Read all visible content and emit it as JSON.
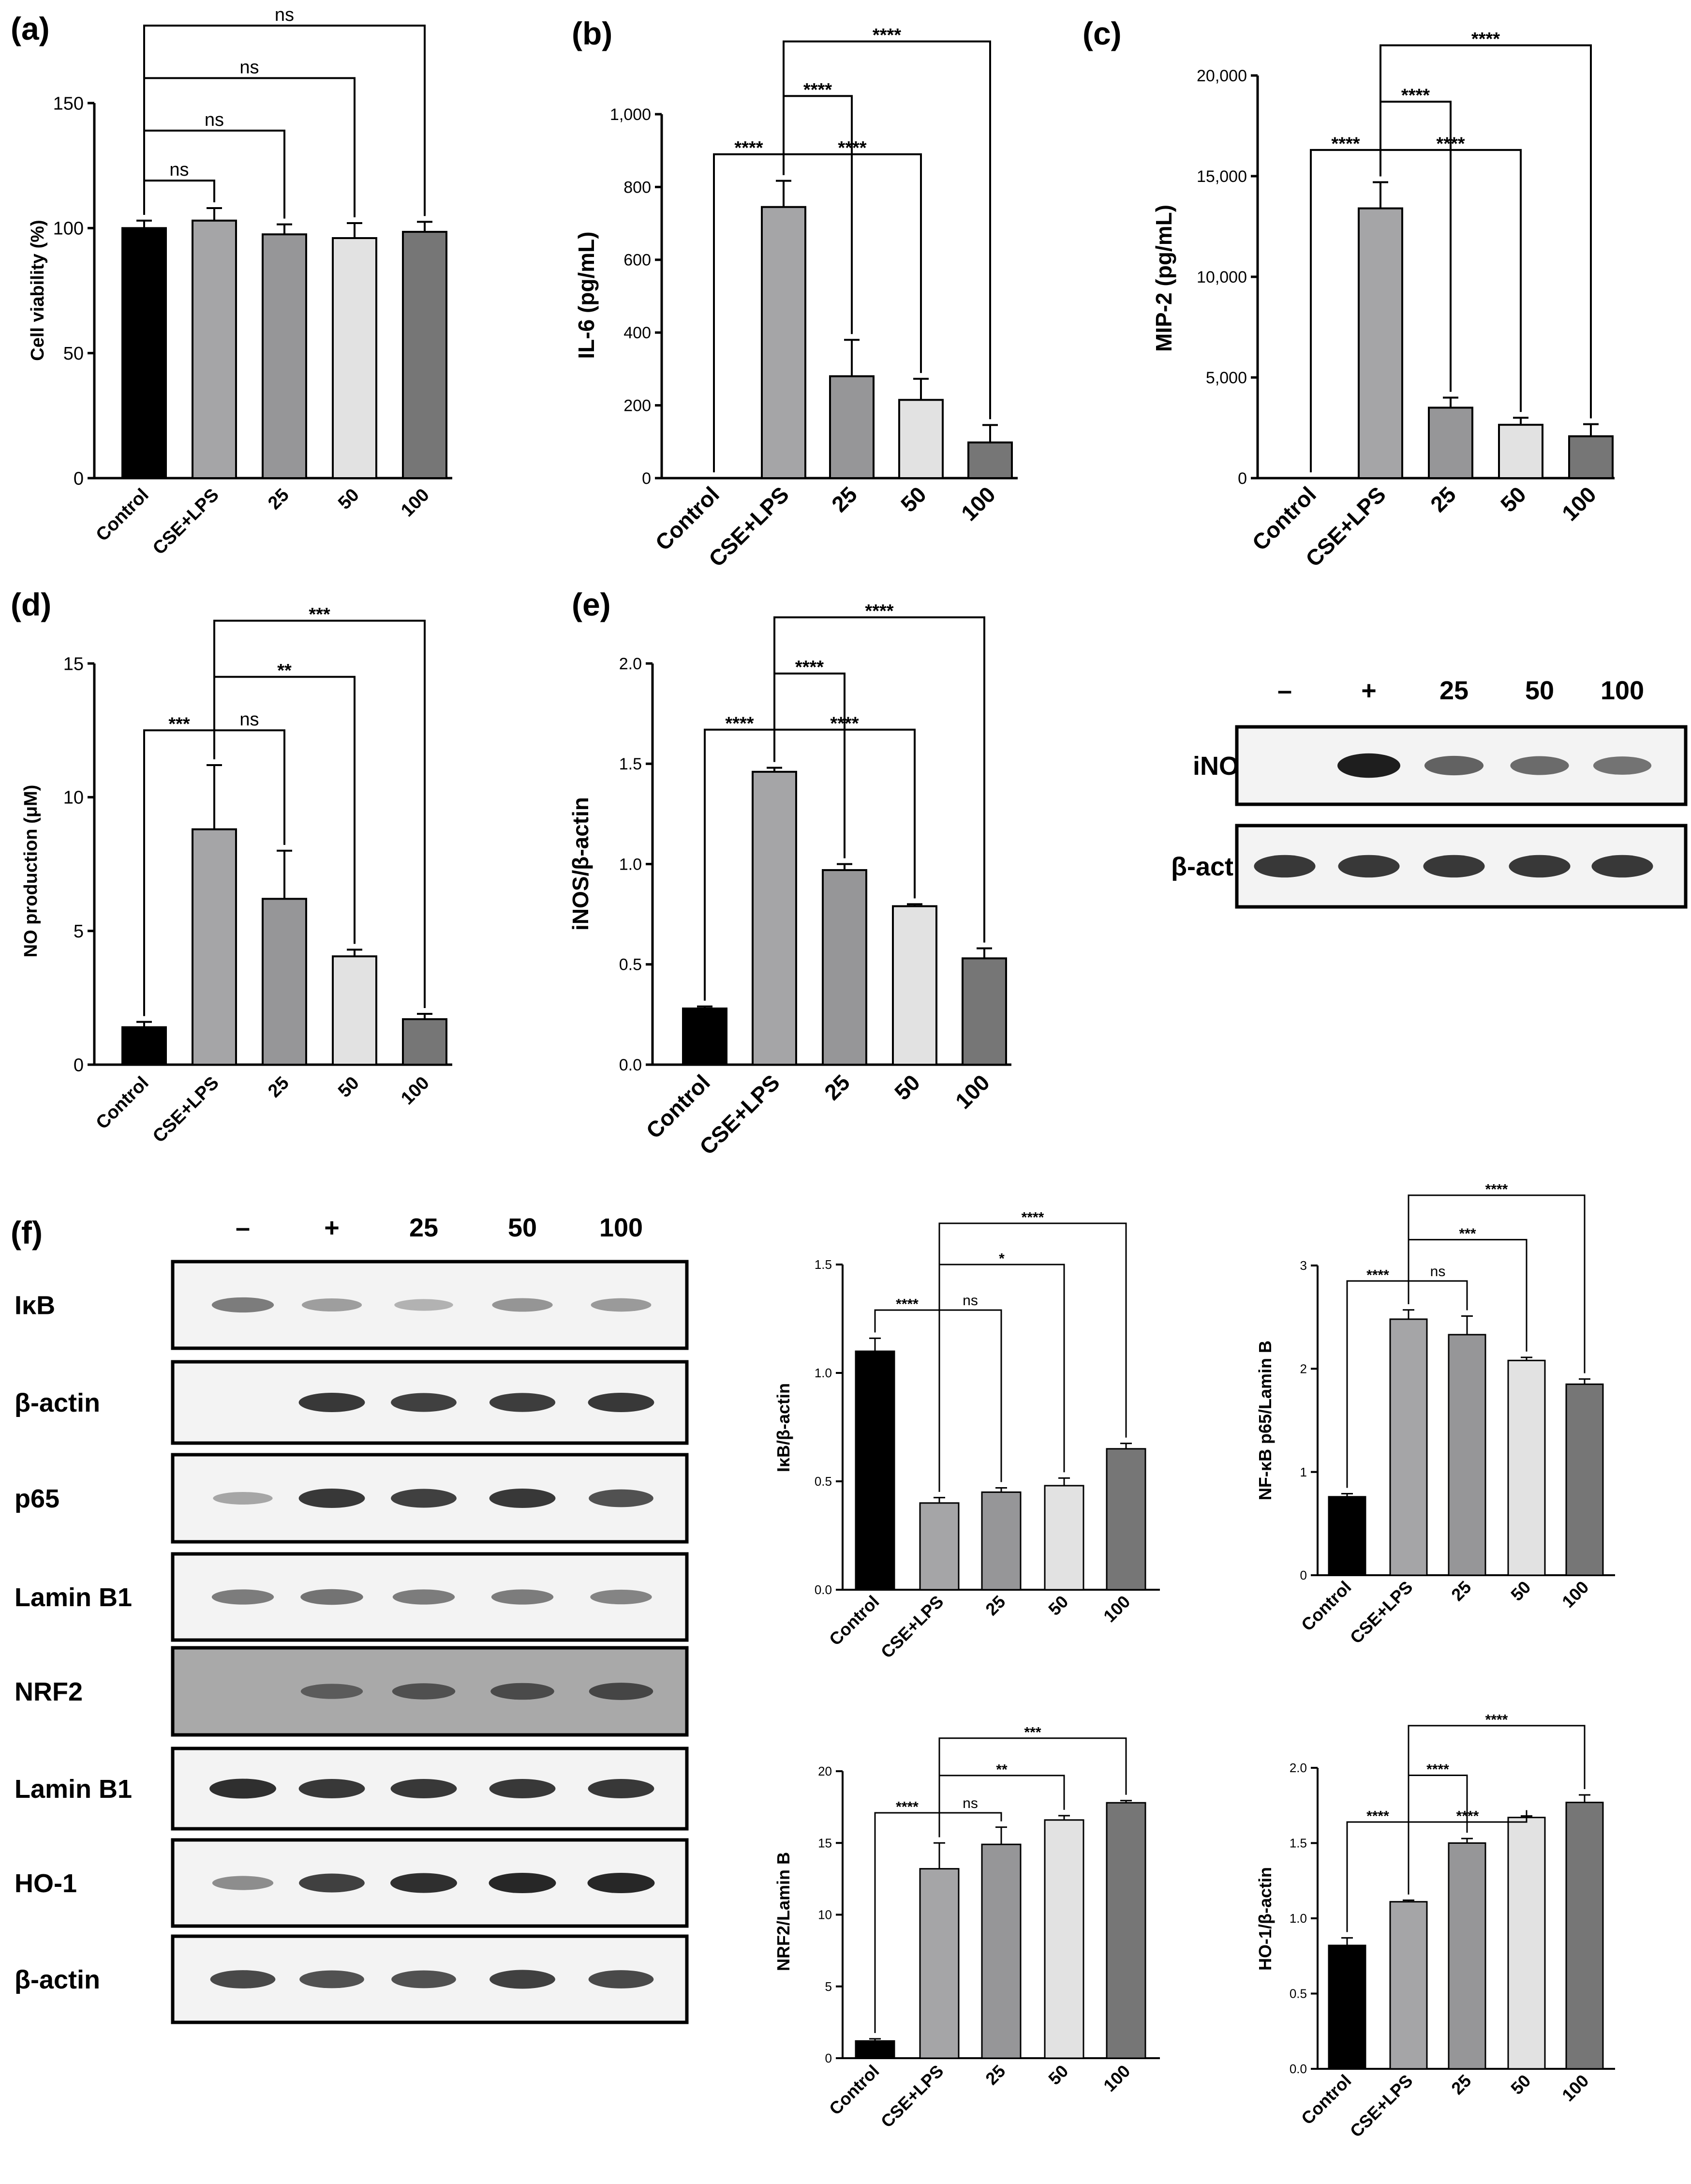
{
  "figure": {
    "colors": {
      "control": "#000000",
      "cse_lps": "#a5a5a7",
      "dose25": "#969698",
      "dose50": "#e2e2e2",
      "dose100": "#767676",
      "blot_background": "#f3f3f3",
      "band": "#1e1e1e",
      "noisy_background": "#a9a9a9"
    },
    "blot_iNOS": {
      "lane_headers": [
        "–",
        "+",
        "25",
        "50",
        "100"
      ],
      "rows": [
        {
          "label": "iNOS",
          "intensities": [
            0.0,
            1.0,
            0.6,
            0.55,
            0.5
          ]
        },
        {
          "label": "β-actin",
          "intensities": [
            0.85,
            0.85,
            0.85,
            0.85,
            0.85
          ]
        }
      ]
    },
    "blot_f": {
      "lane_headers": [
        "–",
        "+",
        "25",
        "50",
        "100"
      ],
      "rows": [
        {
          "label": "IκB",
          "intensities": [
            0.45,
            0.25,
            0.12,
            0.3,
            0.28
          ]
        },
        {
          "label": "β-actin",
          "intensities": [
            0.0,
            0.85,
            0.8,
            0.82,
            0.85
          ]
        },
        {
          "label": "p65",
          "intensities": [
            0.2,
            0.85,
            0.8,
            0.85,
            0.7
          ]
        },
        {
          "label": "Lamin B1",
          "intensities": [
            0.45,
            0.5,
            0.45,
            0.45,
            0.4
          ]
        },
        {
          "label": "NRF2",
          "intensities": [
            0.0,
            0.45,
            0.55,
            0.6,
            0.65
          ]
        },
        {
          "label": "Lamin B1",
          "intensities": [
            0.9,
            0.85,
            0.85,
            0.85,
            0.85
          ]
        },
        {
          "label": "HO-1",
          "intensities": [
            0.35,
            0.8,
            0.9,
            0.95,
            0.95
          ]
        },
        {
          "label": "β-actin",
          "intensities": [
            0.75,
            0.7,
            0.7,
            0.8,
            0.75
          ]
        }
      ]
    }
  },
  "chart_data": [
    {
      "id": "a",
      "panel_label": "(a)",
      "type": "bar",
      "size": "large",
      "ylabel": "Cell viability (%)",
      "ylim": [
        0,
        150
      ],
      "ytick_values": [
        0,
        50,
        100,
        150
      ],
      "ytick_labels": [
        "0",
        "50",
        "100",
        "150"
      ],
      "categories": [
        "Control",
        "CSE+LPS",
        "25",
        "50",
        "100"
      ],
      "values": [
        100,
        103,
        97.5,
        96,
        98.5
      ],
      "errors": [
        3,
        5,
        4,
        6,
        4
      ],
      "brackets": [
        {
          "from": 0,
          "to": 1,
          "label": "ns",
          "y": 119
        },
        {
          "from": 0,
          "to": 2,
          "label": "ns",
          "y": 139
        },
        {
          "from": 0,
          "to": 3,
          "label": "ns",
          "y": 160
        },
        {
          "from": 0,
          "to": 4,
          "label": "ns",
          "y": 181
        }
      ]
    },
    {
      "id": "b",
      "panel_label": "(b)",
      "type": "bar",
      "size": "large",
      "ylabel": "IL-6 (pg/mL)",
      "ylim": [
        0,
        1000
      ],
      "ytick_values": [
        0,
        200,
        400,
        600,
        800,
        1000
      ],
      "ytick_labels": [
        "0",
        "200",
        "400",
        "600",
        "800",
        "1,000"
      ],
      "categories": [
        "Control",
        "CSE+LPS",
        "25",
        "50",
        "100"
      ],
      "values": [
        0,
        745,
        280,
        215,
        98
      ],
      "errors": [
        0,
        72,
        100,
        58,
        48
      ],
      "brackets": [
        {
          "from": 0,
          "to": 1,
          "label": "****",
          "y": 890
        },
        {
          "from": 1,
          "to": 3,
          "label": "****",
          "y": 890
        },
        {
          "from": 1,
          "to": 2,
          "label": "****",
          "y": 1050
        },
        {
          "from": 1,
          "to": 4,
          "label": "****",
          "y": 1200
        }
      ]
    },
    {
      "id": "c",
      "panel_label": "(c)",
      "type": "bar",
      "size": "large",
      "ylabel": "MIP-2 (pg/mL)",
      "ylim": [
        0,
        20000
      ],
      "ytick_values": [
        0,
        5000,
        10000,
        15000,
        20000
      ],
      "ytick_labels": [
        "0",
        "5,000",
        "10,000",
        "15,000",
        "20,000"
      ],
      "categories": [
        "Control",
        "CSE+LPS",
        "25",
        "50",
        "100"
      ],
      "values": [
        0,
        13400,
        3500,
        2650,
        2080
      ],
      "errors": [
        0,
        1300,
        500,
        350,
        600
      ],
      "brackets": [
        {
          "from": 0,
          "to": 1,
          "label": "****",
          "y": 16300
        },
        {
          "from": 1,
          "to": 3,
          "label": "****",
          "y": 16300
        },
        {
          "from": 1,
          "to": 2,
          "label": "****",
          "y": 18700
        },
        {
          "from": 1,
          "to": 4,
          "label": "****",
          "y": 21500
        }
      ]
    },
    {
      "id": "d",
      "panel_label": "(d)",
      "type": "bar",
      "size": "large",
      "ylabel": "NO production (μM)",
      "ylim": [
        0,
        15
      ],
      "ytick_values": [
        0,
        5,
        10,
        15
      ],
      "ytick_labels": [
        "0",
        "5",
        "10",
        "15"
      ],
      "categories": [
        "Control",
        "CSE+LPS",
        "25",
        "50",
        "100"
      ],
      "values": [
        1.4,
        8.8,
        6.2,
        4.05,
        1.7
      ],
      "errors": [
        0.2,
        2.4,
        1.8,
        0.25,
        0.2
      ],
      "brackets": [
        {
          "from": 0,
          "to": 1,
          "label": "***",
          "y": 12.5
        },
        {
          "from": 1,
          "to": 2,
          "label": "ns",
          "y": 12.5
        },
        {
          "from": 1,
          "to": 3,
          "label": "**",
          "y": 14.5
        },
        {
          "from": 1,
          "to": 4,
          "label": "***",
          "y": 16.6
        }
      ]
    },
    {
      "id": "e",
      "panel_label": "(e)",
      "type": "bar",
      "size": "large",
      "ylabel": "iNOS/β-actin",
      "ylim": [
        0,
        2.0
      ],
      "ytick_values": [
        0,
        0.5,
        1.0,
        1.5,
        2.0
      ],
      "ytick_labels": [
        "0.0",
        "0.5",
        "1.0",
        "1.5",
        "2.0"
      ],
      "categories": [
        "Control",
        "CSE+LPS",
        "25",
        "50",
        "100"
      ],
      "values": [
        0.28,
        1.46,
        0.97,
        0.79,
        0.53
      ],
      "errors": [
        0.01,
        0.02,
        0.03,
        0.01,
        0.05
      ],
      "brackets": [
        {
          "from": 0,
          "to": 1,
          "label": "****",
          "y": 1.67
        },
        {
          "from": 1,
          "to": 3,
          "label": "****",
          "y": 1.67
        },
        {
          "from": 1,
          "to": 2,
          "label": "****",
          "y": 1.95
        },
        {
          "from": 1,
          "to": 4,
          "label": "****",
          "y": 2.23
        }
      ]
    },
    {
      "id": "f1",
      "panel_label": "",
      "type": "bar",
      "size": "small",
      "ylabel": "IκB/β-actin",
      "ylim": [
        0,
        1.5
      ],
      "ytick_values": [
        0,
        0.5,
        1.0,
        1.5
      ],
      "ytick_labels": [
        "0.0",
        "0.5",
        "1.0",
        "1.5"
      ],
      "categories": [
        "Control",
        "CSE+LPS",
        "25",
        "50",
        "100"
      ],
      "values": [
        1.1,
        0.4,
        0.45,
        0.48,
        0.65
      ],
      "errors": [
        0.06,
        0.025,
        0.02,
        0.035,
        0.025
      ],
      "brackets": [
        {
          "from": 0,
          "to": 1,
          "label": "****",
          "y": 1.29
        },
        {
          "from": 1,
          "to": 2,
          "label": "ns",
          "y": 1.29
        },
        {
          "from": 1,
          "to": 3,
          "label": "*",
          "y": 1.5
        },
        {
          "from": 1,
          "to": 4,
          "label": "****",
          "y": 1.69
        }
      ]
    },
    {
      "id": "f2",
      "panel_label": "",
      "type": "bar",
      "size": "small",
      "ylabel": "NF-κB p65/Lamin B",
      "ylim": [
        0,
        3
      ],
      "ytick_values": [
        0,
        1,
        2,
        3
      ],
      "ytick_labels": [
        "0",
        "1",
        "2",
        "3"
      ],
      "categories": [
        "Control",
        "CSE+LPS",
        "25",
        "50",
        "100"
      ],
      "values": [
        0.76,
        2.48,
        2.33,
        2.08,
        1.85
      ],
      "errors": [
        0.03,
        0.09,
        0.18,
        0.03,
        0.05
      ],
      "brackets": [
        {
          "from": 0,
          "to": 1,
          "label": "****",
          "y": 2.85
        },
        {
          "from": 1,
          "to": 2,
          "label": "ns",
          "y": 2.85
        },
        {
          "from": 1,
          "to": 3,
          "label": "***",
          "y": 3.25
        },
        {
          "from": 1,
          "to": 4,
          "label": "****",
          "y": 3.68
        }
      ]
    },
    {
      "id": "f3",
      "panel_label": "",
      "type": "bar",
      "size": "small",
      "ylabel": "NRF2/Lamin B",
      "ylim": [
        0,
        20
      ],
      "ytick_values": [
        0,
        5,
        10,
        15,
        20
      ],
      "ytick_labels": [
        "0",
        "5",
        "10",
        "15",
        "20"
      ],
      "categories": [
        "Control",
        "CSE+LPS",
        "25",
        "50",
        "100"
      ],
      "values": [
        1.2,
        13.2,
        14.9,
        16.6,
        17.8
      ],
      "errors": [
        0.15,
        1.8,
        1.2,
        0.3,
        0.15
      ],
      "brackets": [
        {
          "from": 0,
          "to": 1,
          "label": "****",
          "y": 17.1
        },
        {
          "from": 1,
          "to": 2,
          "label": "ns",
          "y": 17.1
        },
        {
          "from": 1,
          "to": 3,
          "label": "**",
          "y": 19.7
        },
        {
          "from": 1,
          "to": 4,
          "label": "***",
          "y": 22.3
        }
      ]
    },
    {
      "id": "f4",
      "panel_label": "",
      "type": "bar",
      "size": "small",
      "ylabel": "HO-1/β-actin",
      "ylim": [
        0,
        2.0
      ],
      "ytick_values": [
        0,
        0.5,
        1.0,
        1.5,
        2.0
      ],
      "ytick_labels": [
        "0.0",
        "0.5",
        "1.0",
        "1.5",
        "2.0"
      ],
      "categories": [
        "Control",
        "CSE+LPS",
        "25",
        "50",
        "100"
      ],
      "values": [
        0.82,
        1.11,
        1.5,
        1.67,
        1.77
      ],
      "errors": [
        0.05,
        0.01,
        0.03,
        0.01,
        0.05
      ],
      "brackets": [
        {
          "from": 0,
          "to": 1,
          "label": "****",
          "y": 1.64
        },
        {
          "from": 1,
          "to": 3,
          "label": "****",
          "y": 1.64
        },
        {
          "from": 1,
          "to": 2,
          "label": "****",
          "y": 1.95
        },
        {
          "from": 1,
          "to": 4,
          "label": "****",
          "y": 2.28
        }
      ]
    }
  ]
}
